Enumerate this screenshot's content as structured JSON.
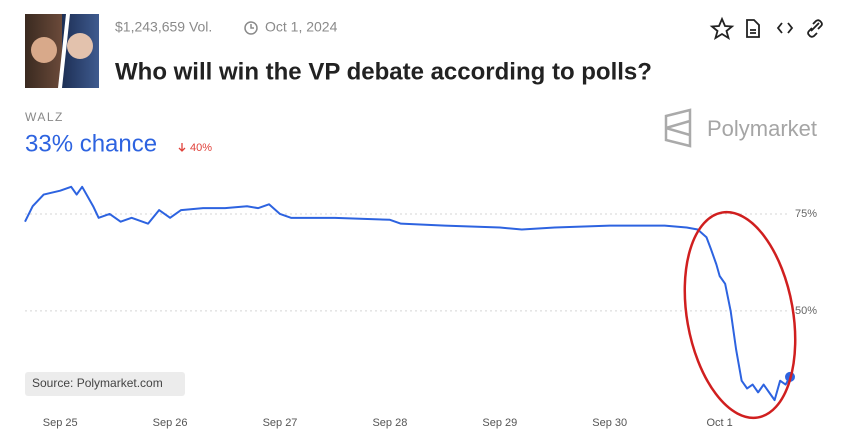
{
  "volume": "$1,243,659 Vol.",
  "date": "Oct 1, 2024",
  "title": "Who will win the VP debate according to polls?",
  "brand": "Polymarket",
  "chart_data": {
    "type": "line",
    "outcome": "WALZ",
    "headline": "33% chance",
    "change": "40%",
    "source": "Source: Polymarket.com",
    "x": [
      -0.32,
      -0.25,
      -0.15,
      0,
      0.1,
      0.15,
      0.2,
      0.3,
      0.35,
      0.45,
      0.55,
      0.65,
      0.8,
      0.9,
      1.0,
      1.1,
      1.3,
      1.5,
      1.7,
      1.8,
      1.9,
      2.0,
      2.1,
      2.5,
      3.0,
      3.1,
      3.5,
      4.0,
      4.2,
      4.5,
      5.0,
      5.5,
      5.7,
      5.8,
      5.88,
      5.92,
      5.97,
      6.0,
      6.05,
      6.1,
      6.15,
      6.2,
      6.25,
      6.3,
      6.35,
      6.4,
      6.45,
      6.5,
      6.55,
      6.6,
      6.64
    ],
    "series": [
      {
        "name": "WALZ",
        "color": "#2d63e0",
        "values": [
          73,
          77,
          80,
          81,
          82,
          80,
          82,
          77,
          74,
          75,
          73,
          74,
          72.5,
          76,
          74,
          76,
          76.5,
          76.5,
          77,
          76.5,
          77.5,
          75,
          74,
          74,
          73.5,
          72.5,
          72,
          71.5,
          71,
          71.5,
          72,
          72,
          71.5,
          71,
          69,
          66,
          62,
          59,
          57,
          50,
          40,
          32,
          30,
          31,
          29,
          31,
          29,
          27,
          32,
          31,
          33
        ]
      }
    ],
    "xlim": [
      -0.32,
      6.64
    ],
    "ylim": [
      26,
      86
    ],
    "xticks": [
      {
        "value": 0,
        "label": "Sep 25"
      },
      {
        "value": 1,
        "label": "Sep 26"
      },
      {
        "value": 2,
        "label": "Sep 27"
      },
      {
        "value": 3,
        "label": "Sep 28"
      },
      {
        "value": 4,
        "label": "Sep 29"
      },
      {
        "value": 5,
        "label": "Sep 30"
      },
      {
        "value": 6,
        "label": "Oct 1"
      }
    ],
    "yticks": [
      {
        "value": 50,
        "label": "50%"
      },
      {
        "value": 75,
        "label": "75%"
      }
    ],
    "grid": true
  }
}
